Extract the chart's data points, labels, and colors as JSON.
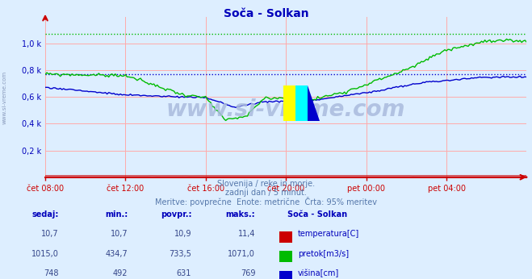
{
  "title": "Soča - Solkan",
  "background_color": "#ddeeff",
  "plot_bg_color": "#ddeeff",
  "grid_color": "#ffaaaa",
  "text_color": "#0000bb",
  "subtitle_lines": [
    "Slovenija / reke in morje.",
    "zadnji dan / 5 minut.",
    "Meritve: povprečne  Enote: metrične  Črta: 95% meritev"
  ],
  "table_headers": [
    "sedaj:",
    "min.:",
    "povpr.:",
    "maks.:"
  ],
  "table_station": "Soča - Solkan",
  "table_rows": [
    {
      "sedaj": "10,7",
      "min": "10,7",
      "povpr": "10,9",
      "maks": "11,4",
      "color": "#cc0000",
      "label": "temperatura[C]"
    },
    {
      "sedaj": "1015,0",
      "min": "434,7",
      "povpr": "733,5",
      "maks": "1071,0",
      "color": "#00bb00",
      "label": "pretok[m3/s]"
    },
    {
      "sedaj": "748",
      "min": "492",
      "povpr": "631",
      "maks": "769",
      "color": "#0000cc",
      "label": "višina[cm]"
    }
  ],
  "x_ticks": [
    "čet 08:00",
    "čet 12:00",
    "čet 16:00",
    "čet 20:00",
    "pet 00:00",
    "pet 04:00"
  ],
  "x_tick_positions": [
    0,
    48,
    96,
    144,
    192,
    240
  ],
  "n_points": 289,
  "ylim": [
    0,
    1.2
  ],
  "yticks": [
    0.2,
    0.4,
    0.6,
    0.8,
    1.0
  ],
  "ytick_labels": [
    "0,2 k",
    "0,4 k",
    "0,6 k",
    "0,8 k",
    "1,0 k"
  ],
  "max_line_green": 1.071,
  "max_line_blue": 0.769,
  "watermark": "www.si-vreme.com",
  "axis_color": "#cc0000",
  "watermark_color": "#aabbdd",
  "left_text": "www.si-vreme.com"
}
